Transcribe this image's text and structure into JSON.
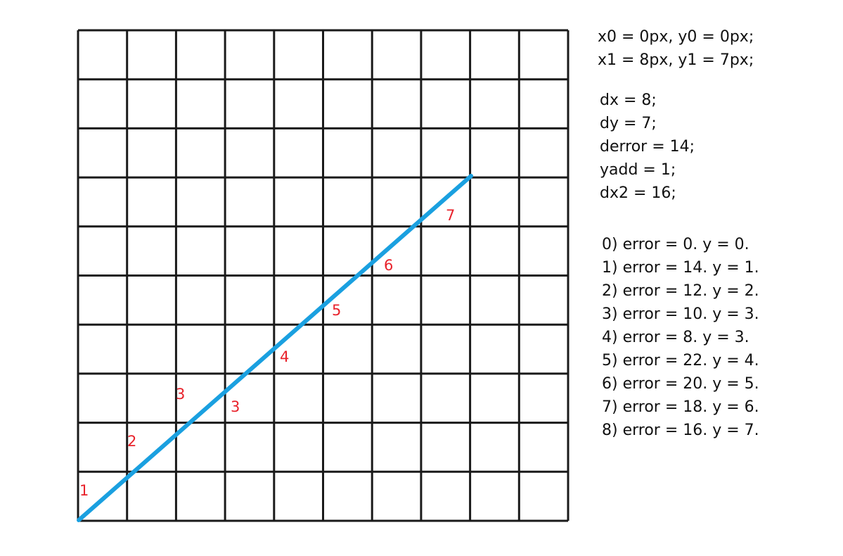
{
  "grid": {
    "columns": 10,
    "rows": 10
  },
  "line": {
    "color": "#1aa0e0",
    "start_cell": [
      0,
      0
    ],
    "end_cell": [
      8,
      7
    ]
  },
  "point_labels_color": "#e8222b",
  "point_labels": [
    "1",
    "2",
    "3",
    "3",
    "4",
    "5",
    "6",
    "7"
  ],
  "params": [
    "x0 = 0px, y0 = 0px;",
    "x1 = 8px, y1 = 7px;"
  ],
  "vars": [
    "dx = 8;",
    "dy = 7;",
    "derror = 14;",
    "yadd = 1;",
    "dx2 = 16;"
  ],
  "steps": [
    "0) error = 0. y = 0.",
    "1) error = 14. y = 1.",
    "2) error = 12. y = 2.",
    "3) error = 10. y = 3.",
    "4) error = 8. y = 3.",
    "5) error = 22. y = 4.",
    "6) error = 20. y = 5.",
    "7) error = 18. y = 6.",
    "8) error = 16. y = 7."
  ]
}
